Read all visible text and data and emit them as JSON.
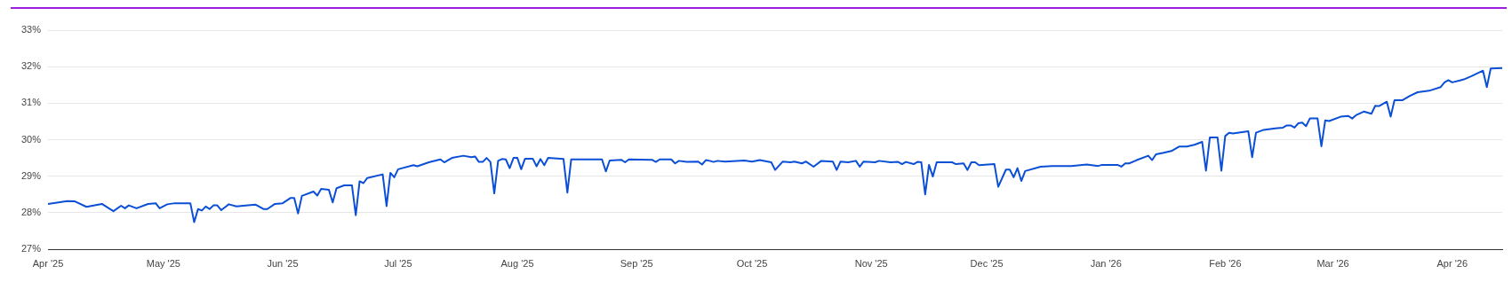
{
  "chart_data": {
    "type": "line",
    "color": "#0b4fd6",
    "marker": "none",
    "line_style": "solid",
    "grid": "y",
    "xlim": [
      "2025-04-01",
      "2026-04-14"
    ],
    "ylim": [
      27,
      33
    ],
    "xticks": [
      {
        "value": "2025-04-01",
        "label": "Apr '25"
      },
      {
        "value": "2025-05-01",
        "label": "May '25"
      },
      {
        "value": "2025-06-01",
        "label": "Jun '25"
      },
      {
        "value": "2025-07-01",
        "label": "Jul '25"
      },
      {
        "value": "2025-08-01",
        "label": "Aug '25"
      },
      {
        "value": "2025-09-01",
        "label": "Sep '25"
      },
      {
        "value": "2025-10-01",
        "label": "Oct '25"
      },
      {
        "value": "2025-11-01",
        "label": "Nov '25"
      },
      {
        "value": "2025-12-01",
        "label": "Dec '25"
      },
      {
        "value": "2026-01-01",
        "label": "Jan '26"
      },
      {
        "value": "2026-02-01",
        "label": "Feb '26"
      },
      {
        "value": "2026-03-01",
        "label": "Mar '26"
      },
      {
        "value": "2026-04-01",
        "label": "Apr '26"
      }
    ],
    "yticks": [
      {
        "value": 27,
        "label": "27%"
      },
      {
        "value": 28,
        "label": "28%"
      },
      {
        "value": 29,
        "label": "29%"
      },
      {
        "value": 30,
        "label": "30%"
      },
      {
        "value": 31,
        "label": "31%"
      },
      {
        "value": 32,
        "label": "32%"
      },
      {
        "value": 33,
        "label": "33%"
      }
    ],
    "x": [
      "2025-04-01",
      "2025-04-06",
      "2025-04-08",
      "2025-04-11",
      "2025-04-15",
      "2025-04-18",
      "2025-04-20",
      "2025-04-21",
      "2025-04-22",
      "2025-04-24",
      "2025-04-27",
      "2025-04-29",
      "2025-04-30",
      "2025-05-02",
      "2025-05-04",
      "2025-05-08",
      "2025-05-09",
      "2025-05-10",
      "2025-05-11",
      "2025-05-12",
      "2025-05-13",
      "2025-05-14",
      "2025-05-15",
      "2025-05-16",
      "2025-05-18",
      "2025-05-20",
      "2025-05-23",
      "2025-05-25",
      "2025-05-27",
      "2025-05-28",
      "2025-05-30",
      "2025-06-01",
      "2025-06-03",
      "2025-06-04",
      "2025-06-05",
      "2025-06-06",
      "2025-06-09",
      "2025-06-10",
      "2025-06-11",
      "2025-06-13",
      "2025-06-14",
      "2025-06-15",
      "2025-06-17",
      "2025-06-19",
      "2025-06-20",
      "2025-06-21",
      "2025-06-22",
      "2025-06-23",
      "2025-06-27",
      "2025-06-28",
      "2025-06-29",
      "2025-06-30",
      "2025-07-01",
      "2025-07-05",
      "2025-07-06",
      "2025-07-09",
      "2025-07-12",
      "2025-07-13",
      "2025-07-15",
      "2025-07-18",
      "2025-07-20",
      "2025-07-21",
      "2025-07-22",
      "2025-07-23",
      "2025-07-24",
      "2025-07-25",
      "2025-07-26",
      "2025-07-27",
      "2025-07-28",
      "2025-07-29",
      "2025-07-30",
      "2025-07-31",
      "2025-08-01",
      "2025-08-02",
      "2025-08-03",
      "2025-08-05",
      "2025-08-06",
      "2025-08-07",
      "2025-08-08",
      "2025-08-09",
      "2025-08-13",
      "2025-08-14",
      "2025-08-15",
      "2025-08-19",
      "2025-08-23",
      "2025-08-24",
      "2025-08-25",
      "2025-08-28",
      "2025-08-29",
      "2025-08-30",
      "2025-09-05",
      "2025-09-06",
      "2025-09-07",
      "2025-09-10",
      "2025-09-11",
      "2025-09-12",
      "2025-09-14",
      "2025-09-17",
      "2025-09-18",
      "2025-09-19",
      "2025-09-20",
      "2025-09-21",
      "2025-09-22",
      "2025-09-24",
      "2025-09-29",
      "2025-10-01",
      "2025-10-03",
      "2025-10-06",
      "2025-10-07",
      "2025-10-09",
      "2025-10-11",
      "2025-10-12",
      "2025-10-14",
      "2025-10-15",
      "2025-10-17",
      "2025-10-19",
      "2025-10-22",
      "2025-10-23",
      "2025-10-24",
      "2025-10-26",
      "2025-10-28",
      "2025-10-29",
      "2025-10-30",
      "2025-11-02",
      "2025-11-03",
      "2025-11-06",
      "2025-11-08",
      "2025-11-09",
      "2025-11-10",
      "2025-11-12",
      "2025-11-13",
      "2025-11-14",
      "2025-11-15",
      "2025-11-16",
      "2025-11-17",
      "2025-11-18",
      "2025-11-22",
      "2025-11-23",
      "2025-11-25",
      "2025-11-26",
      "2025-11-27",
      "2025-11-28",
      "2025-11-29",
      "2025-12-03",
      "2025-12-04",
      "2025-12-06",
      "2025-12-07",
      "2025-12-08",
      "2025-12-09",
      "2025-12-10",
      "2025-12-11",
      "2025-12-15",
      "2025-12-18",
      "2025-12-23",
      "2025-12-27",
      "2025-12-30",
      "2025-12-31",
      "2026-01-04",
      "2026-01-05",
      "2026-01-06",
      "2026-01-07",
      "2026-01-09",
      "2026-01-12",
      "2026-01-13",
      "2026-01-14",
      "2026-01-16",
      "2026-01-18",
      "2026-01-20",
      "2026-01-22",
      "2026-01-24",
      "2026-01-26",
      "2026-01-27",
      "2026-01-28",
      "2026-01-30",
      "2026-01-31",
      "2026-02-01",
      "2026-02-02",
      "2026-02-03",
      "2026-02-05",
      "2026-02-07",
      "2026-02-08",
      "2026-02-09",
      "2026-02-11",
      "2026-02-14",
      "2026-02-16",
      "2026-02-17",
      "2026-02-18",
      "2026-02-19",
      "2026-02-20",
      "2026-02-21",
      "2026-02-22",
      "2026-02-23",
      "2026-02-25",
      "2026-02-26",
      "2026-02-27",
      "2026-02-28",
      "2026-03-03",
      "2026-03-05",
      "2026-03-06",
      "2026-03-07",
      "2026-03-09",
      "2026-03-11",
      "2026-03-12",
      "2026-03-13",
      "2026-03-15",
      "2026-03-16",
      "2026-03-17",
      "2026-03-19",
      "2026-03-20",
      "2026-03-21",
      "2026-03-23",
      "2026-03-26",
      "2026-03-29",
      "2026-03-30",
      "2026-03-31",
      "2026-04-01",
      "2026-04-03",
      "2026-04-04",
      "2026-04-06",
      "2026-04-09",
      "2026-04-10",
      "2026-04-11",
      "2026-04-14"
    ],
    "values": [
      28.24,
      28.32,
      28.31,
      28.16,
      28.24,
      28.04,
      28.19,
      28.12,
      28.2,
      28.12,
      28.24,
      28.26,
      28.12,
      28.23,
      28.26,
      28.26,
      27.74,
      28.1,
      28.06,
      28.17,
      28.1,
      28.2,
      28.2,
      28.07,
      28.23,
      28.17,
      28.2,
      28.22,
      28.1,
      28.1,
      28.24,
      28.26,
      28.4,
      28.4,
      27.98,
      28.46,
      28.58,
      28.47,
      28.65,
      28.63,
      28.28,
      28.67,
      28.75,
      28.75,
      27.93,
      28.86,
      28.81,
      28.95,
      29.05,
      28.18,
      29.09,
      28.97,
      29.19,
      29.3,
      29.27,
      29.38,
      29.46,
      29.38,
      29.5,
      29.56,
      29.52,
      29.54,
      29.39,
      29.39,
      29.5,
      29.39,
      28.53,
      29.42,
      29.47,
      29.46,
      29.22,
      29.5,
      29.5,
      29.19,
      29.48,
      29.48,
      29.27,
      29.47,
      29.3,
      29.5,
      29.47,
      28.55,
      29.46,
      29.46,
      29.46,
      29.13,
      29.43,
      29.45,
      29.38,
      29.46,
      29.45,
      29.39,
      29.46,
      29.46,
      29.35,
      29.42,
      29.39,
      29.4,
      29.32,
      29.44,
      29.42,
      29.39,
      29.42,
      29.4,
      29.43,
      29.4,
      29.44,
      29.38,
      29.17,
      29.4,
      29.38,
      29.4,
      29.35,
      29.4,
      29.26,
      29.42,
      29.4,
      29.17,
      29.4,
      29.38,
      29.42,
      29.26,
      29.4,
      29.38,
      29.42,
      29.38,
      29.39,
      29.33,
      29.39,
      29.33,
      29.39,
      29.38,
      28.5,
      29.31,
      28.99,
      29.38,
      29.38,
      29.33,
      29.35,
      29.17,
      29.38,
      29.38,
      29.3,
      29.33,
      28.71,
      29.18,
      29.18,
      28.97,
      29.22,
      28.87,
      29.14,
      29.26,
      29.28,
      29.28,
      29.32,
      29.28,
      29.31,
      29.31,
      29.26,
      29.35,
      29.35,
      29.44,
      29.56,
      29.44,
      29.6,
      29.64,
      29.69,
      29.81,
      29.81,
      29.86,
      29.94,
      29.15,
      30.06,
      30.06,
      29.15,
      30.1,
      30.19,
      30.17,
      30.2,
      30.23,
      29.52,
      30.19,
      30.27,
      30.31,
      30.33,
      30.39,
      30.39,
      30.33,
      30.45,
      30.47,
      30.37,
      30.58,
      30.58,
      29.82,
      30.53,
      30.51,
      30.63,
      30.65,
      30.58,
      30.67,
      30.77,
      30.71,
      30.93,
      30.92,
      31.04,
      30.63,
      31.08,
      31.08,
      31.14,
      31.2,
      31.3,
      31.34,
      31.44,
      31.57,
      31.63,
      31.57,
      31.62,
      31.65,
      31.74,
      31.89,
      31.44,
      31.95,
      31.96
    ]
  }
}
